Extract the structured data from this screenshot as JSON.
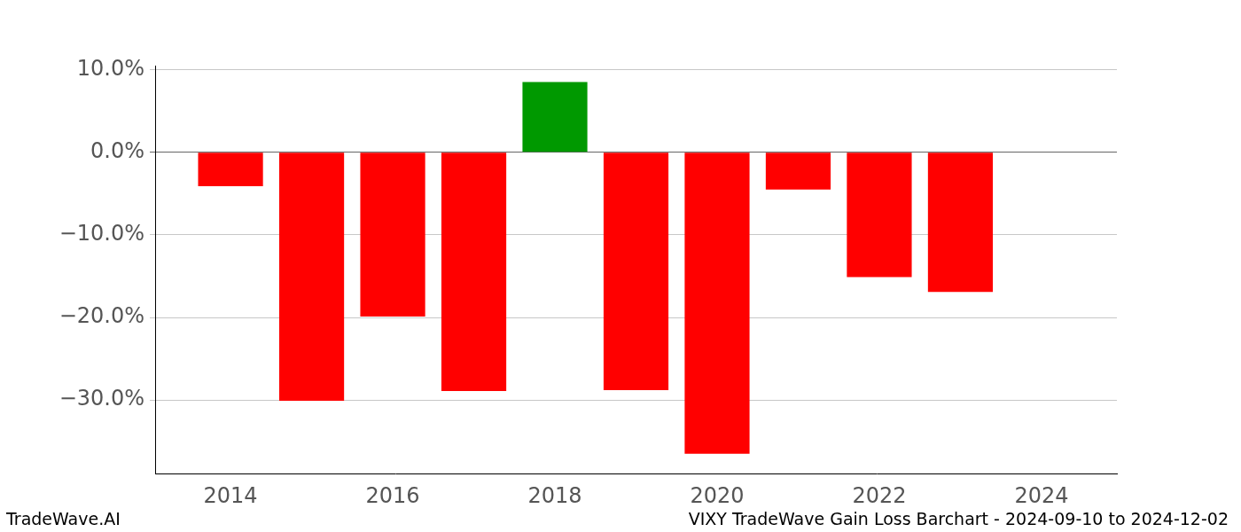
{
  "chart_data": {
    "type": "bar",
    "title": "VIXY TradeWave Gain Loss Barchart - 2024-09-10 to 2024-12-02",
    "annotations": [
      "TradeWave.AI"
    ],
    "x": [
      2014,
      2015,
      2016,
      2017,
      2018,
      2019,
      2020,
      2021,
      2022,
      2023
    ],
    "values": [
      -4.1,
      -30.1,
      -19.9,
      -28.9,
      8.5,
      -28.8,
      -36.5,
      -4.5,
      -15.1,
      -16.9
    ],
    "colors": [
      "#ff0000",
      "#ff0000",
      "#ff0000",
      "#ff0000",
      "#009900",
      "#ff0000",
      "#ff0000",
      "#ff0000",
      "#ff0000",
      "#ff0000"
    ],
    "xlim": [
      2013.07,
      2024.93
    ],
    "xticks": [
      2014,
      2016,
      2018,
      2020,
      2022,
      2024
    ],
    "ylim": [
      -38.9,
      10.5
    ],
    "yticks": [
      {
        "value": -30,
        "label": "−30.0%"
      },
      {
        "value": -20,
        "label": "−20.0%"
      },
      {
        "value": -10,
        "label": "−10.0%"
      },
      {
        "value": 0,
        "label": "0.0%"
      },
      {
        "value": 10,
        "label": "10.0%"
      }
    ],
    "grid": true
  }
}
